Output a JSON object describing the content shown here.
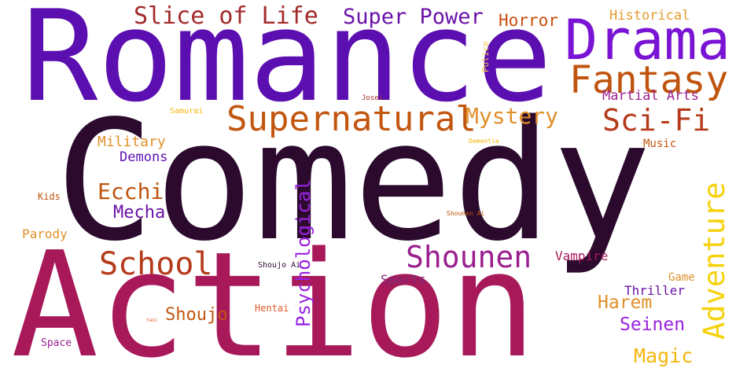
{
  "word_cloud": {
    "words": [
      {
        "text": "Comedy",
        "color": "#2b0a2e"
      },
      {
        "text": "Action",
        "color": "#a8195a"
      },
      {
        "text": "Romance",
        "color": "#5c0fb0"
      },
      {
        "text": "Drama",
        "color": "#7a14d4"
      },
      {
        "text": "Fantasy",
        "color": "#c0540e"
      },
      {
        "text": "Slice of Life",
        "color": "#a32a2a"
      },
      {
        "text": "Super Power",
        "color": "#6a13a8"
      },
      {
        "text": "Horror",
        "color": "#c84e0c"
      },
      {
        "text": "Historical",
        "color": "#e39a2f"
      },
      {
        "text": "Supernatural",
        "color": "#c2560f"
      },
      {
        "text": "Mystery",
        "color": "#e0902b"
      },
      {
        "text": "Sci-Fi",
        "color": "#b53a1a"
      },
      {
        "text": "Martial Arts",
        "color": "#9a1f8f"
      },
      {
        "text": "Military",
        "color": "#e0902b"
      },
      {
        "text": "Music",
        "color": "#c0540e"
      },
      {
        "text": "Demons",
        "color": "#5c0fb0"
      },
      {
        "text": "Ecchi",
        "color": "#c0540e"
      },
      {
        "text": "Mecha",
        "color": "#6a13a8"
      },
      {
        "text": "Psychological",
        "color": "#9a22e0"
      },
      {
        "text": "Adventure",
        "color": "#f5d20c"
      },
      {
        "text": "School",
        "color": "#b53a1a"
      },
      {
        "text": "Shounen",
        "color": "#9a1f8f"
      },
      {
        "text": "Vampire",
        "color": "#a8195a"
      },
      {
        "text": "Parody",
        "color": "#e0902b"
      },
      {
        "text": "Kids",
        "color": "#c0540e"
      },
      {
        "text": "Sports",
        "color": "#7a2e7a"
      },
      {
        "text": "Thriller",
        "color": "#6a13a8"
      },
      {
        "text": "Game",
        "color": "#e0902b"
      },
      {
        "text": "Shoujo",
        "color": "#c2560f"
      },
      {
        "text": "Harem",
        "color": "#e0902b"
      },
      {
        "text": "Seinen",
        "color": "#9a22e0"
      },
      {
        "text": "Magic",
        "color": "#f5b50c"
      },
      {
        "text": "Space",
        "color": "#9a1f8f"
      },
      {
        "text": "Hentai",
        "color": "#e05a2a"
      },
      {
        "text": "Shoujo Ai",
        "color": "#2b0a2e"
      },
      {
        "text": "Yaoi",
        "color": "#e05a2a"
      },
      {
        "text": "Police",
        "color": "#f5c84a"
      },
      {
        "text": "Josei",
        "color": "#a32a2a"
      },
      {
        "text": "Samurai",
        "color": "#f5b50c"
      },
      {
        "text": "Dementia",
        "color": "#f5b50c"
      },
      {
        "text": "Shounen Ai",
        "color": "#c0540e"
      }
    ]
  }
}
